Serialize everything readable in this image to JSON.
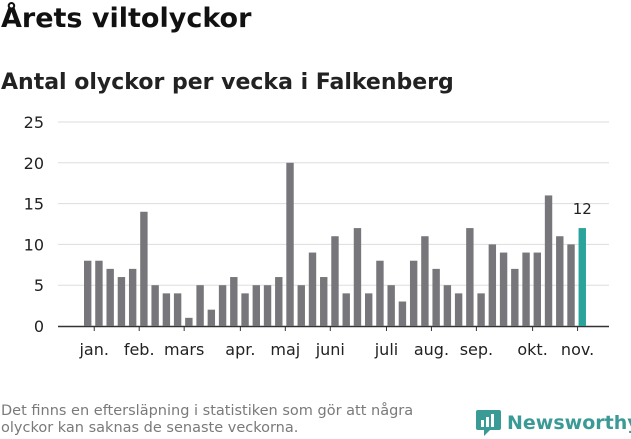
{
  "header": {
    "title": "Årets viltolyckor",
    "subtitle": "Antal olyckor per vecka i Falkenberg"
  },
  "chart_data": {
    "type": "bar",
    "title": "Årets viltolyckor",
    "subtitle": "Antal olyckor per vecka i Falkenberg",
    "xlabel": "",
    "ylabel": "",
    "ylim": [
      0,
      25
    ],
    "yticks": [
      0,
      5,
      10,
      15,
      20,
      25
    ],
    "grid": true,
    "values": [
      8,
      8,
      7,
      6,
      7,
      14,
      5,
      4,
      4,
      1,
      5,
      2,
      5,
      6,
      4,
      5,
      5,
      6,
      20,
      5,
      9,
      6,
      11,
      4,
      12,
      4,
      8,
      5,
      3,
      8,
      11,
      7,
      5,
      4,
      12,
      4,
      10,
      9,
      7,
      9,
      9,
      16,
      11,
      10,
      12
    ],
    "month_labels": [
      {
        "label": "jan.",
        "week": 1
      },
      {
        "label": "feb.",
        "week": 5
      },
      {
        "label": "mars",
        "week": 9
      },
      {
        "label": "apr.",
        "week": 14
      },
      {
        "label": "maj",
        "week": 18
      },
      {
        "label": "juni",
        "week": 22
      },
      {
        "label": "juli",
        "week": 27
      },
      {
        "label": "aug.",
        "week": 31
      },
      {
        "label": "sep.",
        "week": 35
      },
      {
        "label": "okt.",
        "week": 40
      },
      {
        "label": "nov.",
        "week": 44
      }
    ],
    "highlight": {
      "index": 44,
      "label": "12"
    },
    "colors": {
      "bar": "#77767a",
      "highlight": "#2aa39b",
      "grid": "#dddddd",
      "axis": "#333333"
    }
  },
  "footer": {
    "note": "Det finns en eftersläpning i statistiken som gör att några olyckor kan saknas de senaste veckorna.",
    "brand": "Newsworthy"
  }
}
